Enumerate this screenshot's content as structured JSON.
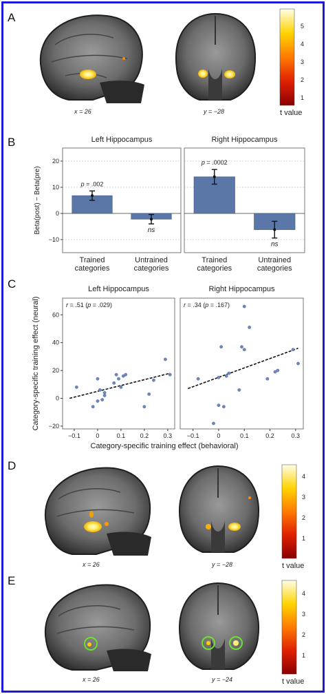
{
  "panels": {
    "A": {
      "letter": "A",
      "left_caption": "x = 26",
      "right_caption": "y = −28",
      "colorbar": {
        "ticks": [
          "5",
          "4",
          "3",
          "2",
          "1"
        ],
        "label": "t value"
      }
    },
    "B": {
      "letter": "B"
    },
    "C": {
      "letter": "C"
    },
    "D": {
      "letter": "D",
      "left_caption": "x = 26",
      "right_caption": "y = −28",
      "colorbar": {
        "ticks": [
          "4",
          "3",
          "2",
          "1"
        ],
        "label": "t value"
      }
    },
    "E": {
      "letter": "E",
      "left_caption": "x = 26",
      "right_caption": "y = −24",
      "colorbar": {
        "ticks": [
          "4",
          "3",
          "2",
          "1"
        ],
        "label": "t value"
      }
    }
  },
  "chart_data": [
    {
      "panel": "B",
      "type": "bar",
      "title": "Left Hippocampus",
      "ylabel": "Beta(post) − Beta(pre)",
      "ylim": [
        -15,
        25
      ],
      "yticks": [
        "20",
        "10",
        "0",
        "−10"
      ],
      "categories": [
        "Trained categories",
        "Untrained categories"
      ],
      "category_lines": [
        [
          "Trained",
          "categories"
        ],
        [
          "Untrained",
          "categories"
        ]
      ],
      "values": [
        6.8,
        -2.2
      ],
      "errors": [
        1.8,
        1.8
      ],
      "annotations": [
        "p = .002",
        "ns"
      ]
    },
    {
      "panel": "B",
      "type": "bar",
      "title": "Right Hippocampus",
      "ylim": [
        -15,
        25
      ],
      "categories": [
        "Trained categories",
        "Untrained categories"
      ],
      "category_lines": [
        [
          "Trained",
          "categories"
        ],
        [
          "Untrained",
          "categories"
        ]
      ],
      "values": [
        14,
        -6.2
      ],
      "errors": [
        2.8,
        3.2
      ],
      "annotations": [
        "p = .0002",
        "ns"
      ]
    },
    {
      "panel": "C",
      "type": "scatter",
      "title": "Left Hippocampus",
      "annotation": "r = .51 (p = .029)",
      "ylabel": "Category-specific training effect (neural)",
      "xlim": [
        -0.15,
        0.33
      ],
      "ylim": [
        -22,
        72
      ],
      "xticks": [
        "−0.1",
        "0",
        "0.1",
        "0.2",
        "0.3"
      ],
      "yticks": [
        "60",
        "40",
        "20",
        "0",
        "−20"
      ],
      "points": [
        [
          -0.09,
          8
        ],
        [
          -0.02,
          -6
        ],
        [
          0.0,
          14
        ],
        [
          0.0,
          -2
        ],
        [
          0.01,
          6
        ],
        [
          0.02,
          -1
        ],
        [
          0.03,
          4
        ],
        [
          0.03,
          2
        ],
        [
          0.07,
          11
        ],
        [
          0.08,
          17
        ],
        [
          0.09,
          14
        ],
        [
          0.1,
          8
        ],
        [
          0.11,
          16
        ],
        [
          0.12,
          17
        ],
        [
          0.2,
          -6
        ],
        [
          0.22,
          3
        ],
        [
          0.24,
          13
        ],
        [
          0.29,
          28
        ],
        [
          0.31,
          17
        ]
      ],
      "trend": [
        [
          -0.12,
          0
        ],
        [
          0.31,
          18
        ]
      ]
    },
    {
      "panel": "C",
      "type": "scatter",
      "title": "Right Hippocampus",
      "annotation": "r = .34 (p = .167)",
      "xlabel": "Category-specific training effect (behavioral)",
      "xlim": [
        -0.15,
        0.33
      ],
      "ylim": [
        -22,
        72
      ],
      "xticks": [
        "−0.1",
        "0",
        "0.1",
        "0.2",
        "0.3"
      ],
      "points": [
        [
          -0.08,
          14
        ],
        [
          -0.02,
          -18
        ],
        [
          0.0,
          -5
        ],
        [
          0.0,
          15
        ],
        [
          0.01,
          37
        ],
        [
          0.02,
          -6
        ],
        [
          0.03,
          16
        ],
        [
          0.04,
          18
        ],
        [
          0.08,
          6
        ],
        [
          0.09,
          37
        ],
        [
          0.1,
          66
        ],
        [
          0.1,
          35
        ],
        [
          0.12,
          51
        ],
        [
          0.19,
          14
        ],
        [
          0.22,
          19
        ],
        [
          0.23,
          20
        ],
        [
          0.29,
          35
        ],
        [
          0.31,
          25
        ]
      ],
      "trend": [
        [
          -0.12,
          7
        ],
        [
          0.31,
          36
        ]
      ]
    }
  ],
  "colors": {
    "border": "#1a1ad6",
    "bar_fill": "#5b77a8",
    "point_fill": "#6f86b8",
    "activation_core": "#fff176",
    "activation_edge": "#f0b400"
  }
}
